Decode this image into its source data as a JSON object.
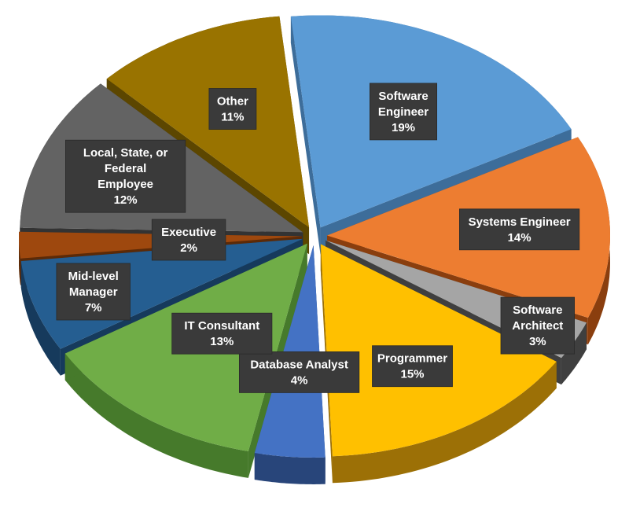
{
  "chart_data": {
    "type": "pie",
    "title": "",
    "slices": [
      {
        "label": "Software Engineer",
        "value": 19,
        "display": "19%",
        "color": "#5b9bd5",
        "side": "#3d6d9a"
      },
      {
        "label": "Systems Engineer",
        "value": 14,
        "display": "14%",
        "color": "#ed7d31",
        "side": "#8a3e0e"
      },
      {
        "label": "Software Architect",
        "value": 3,
        "display": "3%",
        "color": "#a5a5a5",
        "side": "#3f3f3f"
      },
      {
        "label": "Programmer",
        "value": 15,
        "display": "15%",
        "color": "#ffc000",
        "side": "#9c7006"
      },
      {
        "label": "Database Analyst",
        "value": 4,
        "display": "4%",
        "color": "#4472c4",
        "side": "#28457a"
      },
      {
        "label": "IT Consultant",
        "value": 13,
        "display": "13%",
        "color": "#70ad47",
        "side": "#467a2b"
      },
      {
        "label": "Mid-level Manager",
        "value": 7,
        "display": "7%",
        "color": "#255e91",
        "side": "#163a5c"
      },
      {
        "label": "Executive",
        "value": 2,
        "display": "2%",
        "color": "#9e480e",
        "side": "#5c2a07"
      },
      {
        "label": "Local, State, or Federal Employee",
        "value": 12,
        "display": "12%",
        "color": "#636363",
        "side": "#333333"
      },
      {
        "label": "Other",
        "value": 11,
        "display": "11%",
        "color": "#997300",
        "side": "#5c4600"
      }
    ],
    "legend": "none",
    "data_labels": "category name and percentage, inside dark callout boxes"
  }
}
